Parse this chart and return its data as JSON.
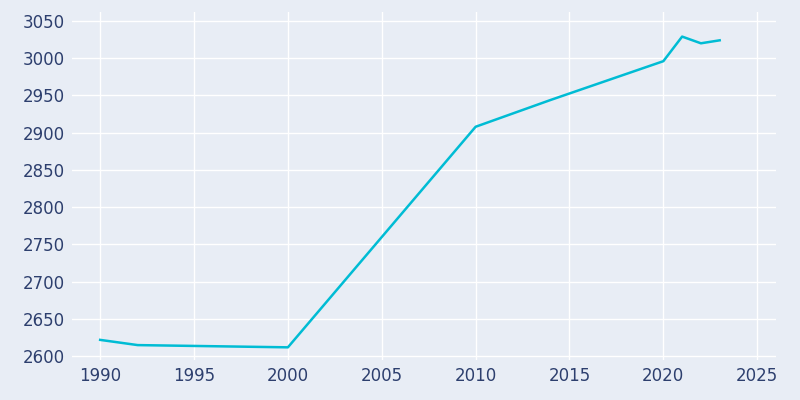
{
  "years": [
    1990,
    1992,
    2000,
    2010,
    2014,
    2020,
    2021,
    2022,
    2023
  ],
  "population": [
    2622,
    2615,
    2612,
    2908,
    2944,
    2996,
    3029,
    3020,
    3024
  ],
  "line_color": "#00BCD4",
  "bg_color": "#E8EDF5",
  "grid_color": "#ffffff",
  "tick_color": "#2d3f6e",
  "xlim": [
    1988.5,
    2026
  ],
  "ylim": [
    2595,
    3062
  ],
  "xticks": [
    1990,
    1995,
    2000,
    2005,
    2010,
    2015,
    2020,
    2025
  ],
  "yticks": [
    2600,
    2650,
    2700,
    2750,
    2800,
    2850,
    2900,
    2950,
    3000,
    3050
  ],
  "linewidth": 1.8,
  "tick_fontsize": 12
}
